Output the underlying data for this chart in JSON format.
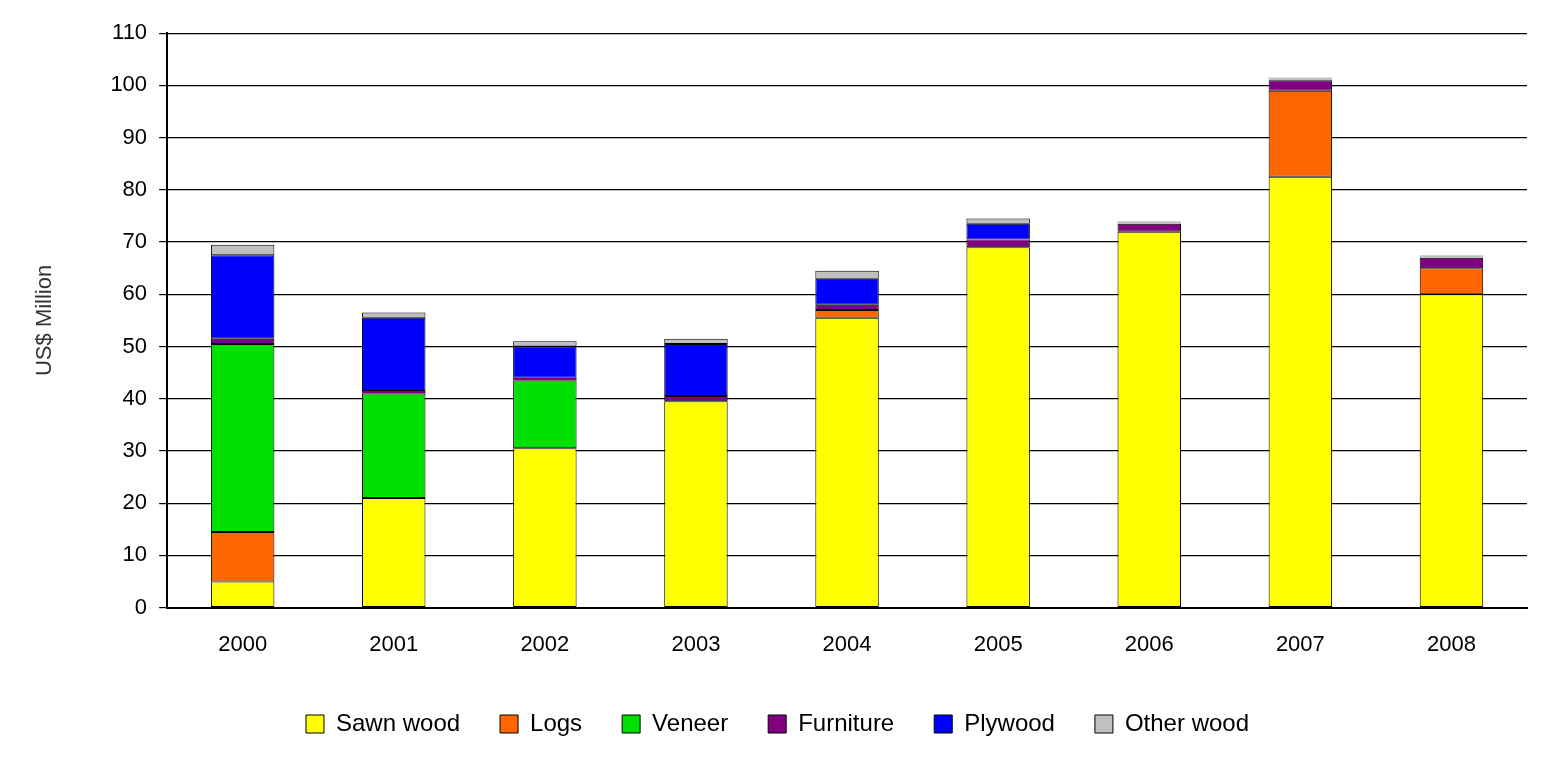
{
  "chart_data": {
    "type": "bar",
    "stacked": true,
    "ylabel": "US$ Million",
    "categories": [
      "2000",
      "2001",
      "2002",
      "2003",
      "2004",
      "2005",
      "2006",
      "2007",
      "2008"
    ],
    "series": [
      {
        "name": "Sawn wood",
        "color": "#ffff00",
        "values": [
          5,
          21,
          30.5,
          39.5,
          55.5,
          69,
          72,
          82.5,
          60
        ]
      },
      {
        "name": "Logs",
        "color": "#ff6600",
        "values": [
          9.5,
          0,
          0,
          0,
          1.5,
          0,
          0,
          16.5,
          5
        ]
      },
      {
        "name": "Veneer",
        "color": "#00e000",
        "values": [
          36,
          20,
          13,
          0,
          0,
          0,
          0,
          0,
          0
        ]
      },
      {
        "name": "Furniture",
        "color": "#800080",
        "values": [
          1,
          0.5,
          0.5,
          1,
          1,
          1.5,
          1.5,
          2,
          2
        ]
      },
      {
        "name": "Plywood",
        "color": "#0000ff",
        "values": [
          16,
          14,
          6,
          10,
          5,
          3,
          0,
          0,
          0
        ]
      },
      {
        "name": "Other wood",
        "color": "#c0c0c0",
        "values": [
          2,
          1,
          1,
          1,
          1.5,
          1,
          0.5,
          0.5,
          0.5
        ]
      }
    ],
    "ylim": [
      0,
      110
    ],
    "yticks": [
      0,
      10,
      20,
      30,
      40,
      50,
      60,
      70,
      80,
      90,
      100,
      110
    ],
    "grid": "y",
    "legend": "bottom"
  }
}
